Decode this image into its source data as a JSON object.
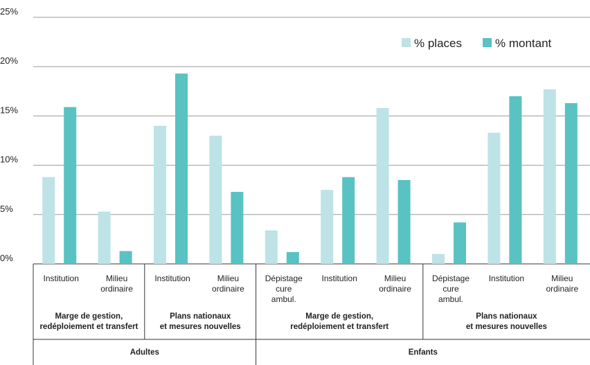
{
  "chart_data": {
    "type": "bar",
    "title": "",
    "xlabel": "",
    "ylabel": "",
    "ylim": [
      0,
      25
    ],
    "yticks": [
      "0%",
      "5%",
      "10%",
      "15%",
      "20%",
      "25%"
    ],
    "grid": true,
    "legend_position": "top-right",
    "colors": {
      "places": "#bde3e6",
      "montant": "#59c2c2"
    },
    "series": [
      {
        "name": "% places",
        "values": [
          8.8,
          5.3,
          14.0,
          13.0,
          3.4,
          7.5,
          15.8,
          1.0,
          13.3,
          17.7
        ]
      },
      {
        "name": "% montant",
        "values": [
          15.9,
          1.3,
          19.3,
          7.3,
          1.2,
          8.8,
          8.5,
          4.2,
          17.0,
          16.3
        ]
      }
    ],
    "categories": [
      [
        "Institution"
      ],
      [
        "Milieu",
        "ordinaire"
      ],
      [
        "Institution"
      ],
      [
        "Milieu",
        "ordinaire"
      ],
      [
        "Dépistage",
        "cure",
        "ambul."
      ],
      [
        "Institution"
      ],
      [
        "Milieu",
        "ordinaire"
      ],
      [
        "Dépistage",
        "cure",
        "ambul."
      ],
      [
        "Institution"
      ],
      [
        "Milieu",
        "ordinaire"
      ]
    ],
    "groups": [
      {
        "lines": [
          "Marge de gestion,",
          "redéploiement et transfert"
        ],
        "start": 0,
        "end": 1
      },
      {
        "lines": [
          "Plans nationaux",
          "et mesures nouvelles"
        ],
        "start": 2,
        "end": 3
      },
      {
        "lines": [
          "Marge de gestion,",
          "redéploiement et transfert"
        ],
        "start": 4,
        "end": 6
      },
      {
        "lines": [
          "Plans nationaux",
          "et mesures nouvelles"
        ],
        "start": 7,
        "end": 9
      }
    ],
    "supergroups": [
      {
        "label": "Adultes",
        "start": 0,
        "end": 3
      },
      {
        "label": "Enfants",
        "start": 4,
        "end": 9
      }
    ]
  }
}
